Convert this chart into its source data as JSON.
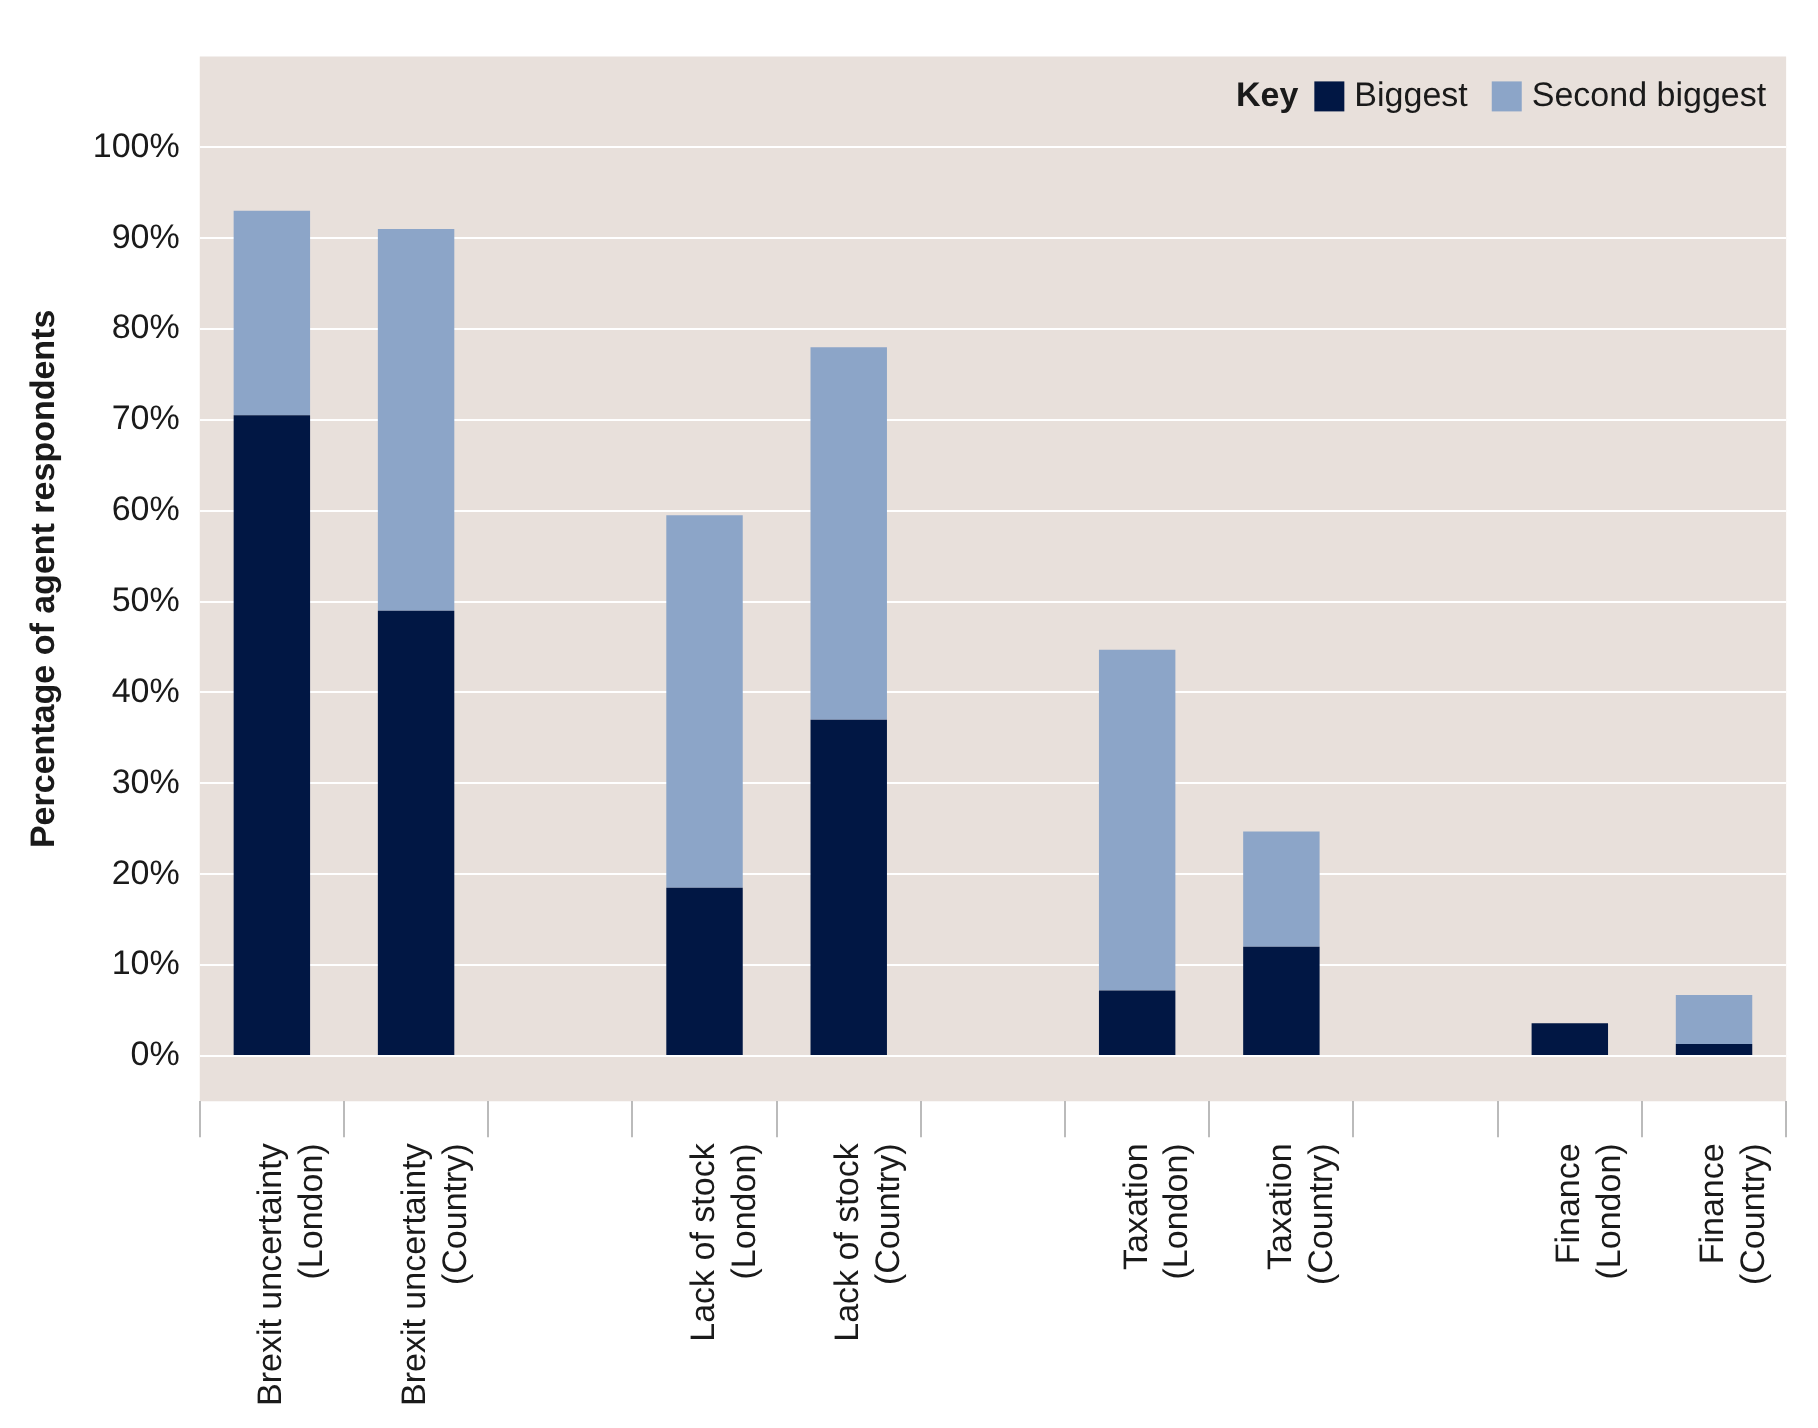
{
  "chart_data": {
    "type": "bar",
    "stacked": true,
    "ylabel": "Percentage of agent respondents",
    "legend_title": "Key",
    "legend": "top right",
    "grid": "y",
    "categories": [
      "Brexit uncertainty\n(London)",
      "Brexit uncertainty\n(Country)",
      null,
      "Lack of stock\n(London)",
      "Lack of stock\n(Country)",
      null,
      "Taxation\n(London)",
      "Taxation\n(Country)",
      null,
      "Finance\n(London)",
      "Finance\n(Country)"
    ],
    "series": [
      {
        "name": "Biggest",
        "color": "#011744",
        "values": [
          70.5,
          49,
          null,
          18.5,
          37,
          null,
          7.2,
          12,
          null,
          3.6,
          1.3
        ]
      },
      {
        "name": "Second biggest",
        "color": "#8ca5c8",
        "values": [
          22.5,
          42,
          null,
          41,
          41,
          null,
          37.5,
          12.7,
          null,
          0,
          5.4
        ]
      }
    ],
    "ylim": [
      -5,
      110
    ],
    "yticks": [
      {
        "value": 0,
        "label": "0%"
      },
      {
        "value": 10,
        "label": "10%"
      },
      {
        "value": 20,
        "label": "20%"
      },
      {
        "value": 30,
        "label": "30%"
      },
      {
        "value": 40,
        "label": "40%"
      },
      {
        "value": 50,
        "label": "50%"
      },
      {
        "value": 60,
        "label": "60%"
      },
      {
        "value": 70,
        "label": "70%"
      },
      {
        "value": 80,
        "label": "80%"
      },
      {
        "value": 90,
        "label": "90%"
      },
      {
        "value": 100,
        "label": "100%"
      }
    ]
  }
}
